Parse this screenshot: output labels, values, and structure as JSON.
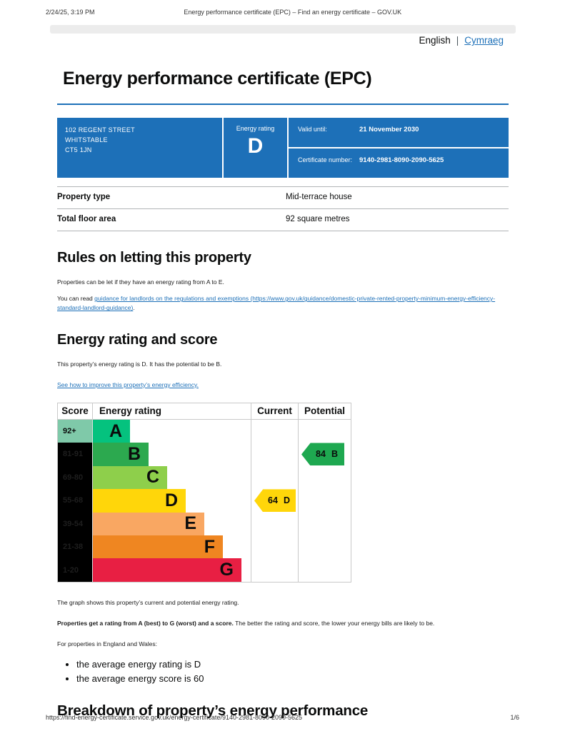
{
  "print_header": {
    "timestamp": "2/24/25, 3:19 PM",
    "title": "Energy performance certificate (EPC) – Find an energy certificate – GOV.UK"
  },
  "language_switcher": {
    "current": "English",
    "separator": "|",
    "link": "Cymraeg"
  },
  "page": {
    "title": "Energy performance certificate (EPC)",
    "accent_color": "#1d70b8"
  },
  "certificate_banner": {
    "address_lines": [
      "102 REGENT STREET",
      "WHITSTABLE",
      "CT5 1JN"
    ],
    "energy_rating_label": "Energy rating",
    "energy_rating": "D",
    "valid_until_label": "Valid until:",
    "valid_until": "21 November 2030",
    "certificate_number_label": "Certificate number:",
    "certificate_number": "9140-2981-8090-2090-5625"
  },
  "summary": {
    "rows": [
      {
        "label": "Property type",
        "value": "Mid-terrace house"
      },
      {
        "label": "Total floor area",
        "value": "92 square metres"
      }
    ]
  },
  "rules_section": {
    "heading": "Rules on letting this property",
    "paragraph1": "Properties can be let if they have an energy rating from A to E.",
    "paragraph2_prefix": "You can read ",
    "paragraph2_link": "guidance for landlords on the regulations and exemptions (https://www.gov.uk/guidance/domestic-private-rented-property-minimum-energy-efficiency-standard-landlord-guidance)",
    "paragraph2_suffix": "."
  },
  "rating_section": {
    "heading": "Energy rating and score",
    "paragraph": "This property’s energy rating is D. It has the potential to be B.",
    "improve_link": "See how to improve this property’s energy efficiency."
  },
  "chart_data": {
    "type": "bar",
    "title": "Energy rating and score chart",
    "headers": {
      "score": "Score",
      "rating": "Energy rating",
      "current": "Current",
      "potential": "Potential"
    },
    "bands": [
      {
        "letter": "A",
        "score": "92+",
        "color": "#05c27e",
        "score_bg": "#7fc9a9",
        "score_color": "#0b0c0c"
      },
      {
        "letter": "B",
        "score": "81-91",
        "color": "#2ca94f",
        "score_bg": "#000000",
        "score_color": "#1e1e1e"
      },
      {
        "letter": "C",
        "score": "69-80",
        "color": "#8ecf4b",
        "score_bg": "#000000",
        "score_color": "#1e1e1e"
      },
      {
        "letter": "D",
        "score": "55-68",
        "color": "#ffd60a",
        "score_bg": "#000000",
        "score_color": "#1e1e1e"
      },
      {
        "letter": "E",
        "score": "39-54",
        "color": "#f9a762",
        "score_bg": "#000000",
        "score_color": "#1e1e1e"
      },
      {
        "letter": "F",
        "score": "21-38",
        "color": "#ef8621",
        "score_bg": "#000000",
        "score_color": "#1e1e1e"
      },
      {
        "letter": "G",
        "score": "1-20",
        "color": "#e81f43",
        "score_bg": "#000000",
        "score_color": "#1e1e1e"
      }
    ],
    "current": {
      "score": "64",
      "band": "D",
      "color": "#ffd60a"
    },
    "potential": {
      "score": "84",
      "band": "B",
      "color": "#1ea850"
    },
    "caption": "The graph shows this property’s current and potential energy rating."
  },
  "explanation": {
    "bold": "Properties get a rating from A (best) to G (worst) and a score.",
    "rest": " The better the rating and score, the lower your energy bills are likely to be.",
    "regions_intro": "For properties in England and Wales:",
    "bullets": [
      "the average energy rating is D",
      "the average energy score is 60"
    ]
  },
  "breakdown_heading": "Breakdown of property’s energy performance",
  "print_footer": {
    "url": "https://find-energy-certificate.service.gov.uk/energy-certificate/9140-2981-8090-2090-5625",
    "page": "1/6"
  }
}
